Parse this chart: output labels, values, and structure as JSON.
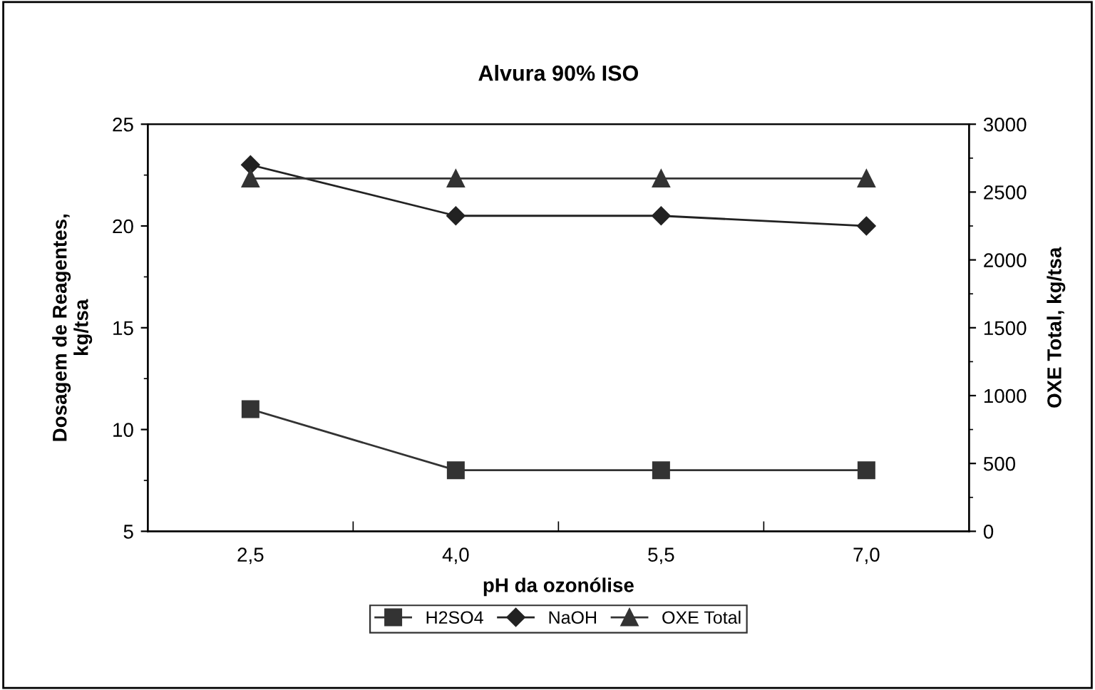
{
  "chart_data": {
    "type": "line",
    "title": "Alvura 90% ISO",
    "xlabel": "pH da ozonólise",
    "ylabel": "Dosagem de Reagentes,\nkg/tsa",
    "y2label": "OXE Total, kg/tsa",
    "categories": [
      "2,5",
      "4,0",
      "5,5",
      "7,0"
    ],
    "series": [
      {
        "name": "H2SO4",
        "color": "#333333",
        "marker": "square",
        "values": [
          11,
          8,
          8,
          8
        ]
      },
      {
        "name": "NaOH",
        "color": "#222222",
        "marker": "diamond",
        "values": [
          23,
          20.5,
          20.5,
          20
        ]
      },
      {
        "name": "OXE Total",
        "color": "#333333",
        "marker": "triangle",
        "axis": "y2",
        "values": [
          2600,
          2600,
          2600,
          2600
        ]
      }
    ],
    "ylim": [
      5,
      25
    ],
    "yticks": [
      5,
      10,
      15,
      20,
      25
    ],
    "y2lim": [
      0,
      3000
    ],
    "y2ticks": [
      0,
      500,
      1000,
      1500,
      2000,
      2500,
      3000
    ],
    "grid": false,
    "legend": "bottom",
    "line_style": "solid"
  }
}
